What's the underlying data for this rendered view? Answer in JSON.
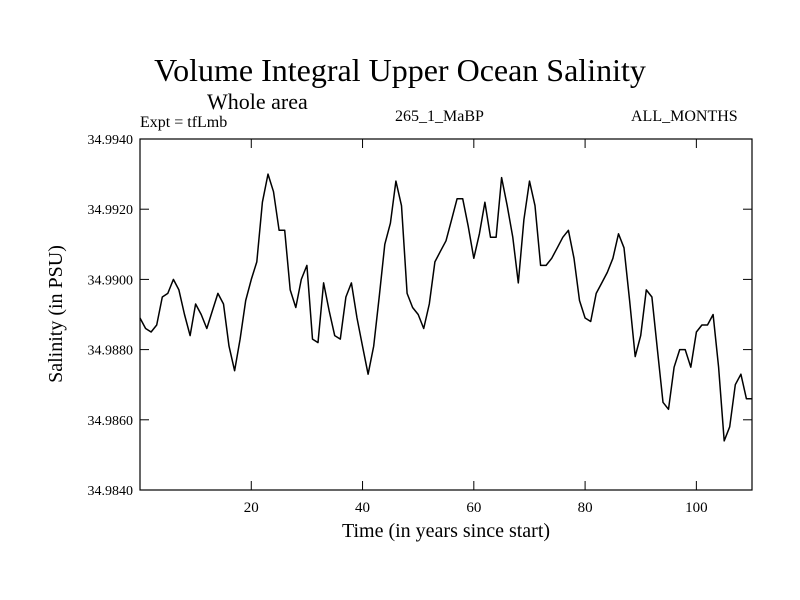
{
  "chart_data": {
    "type": "line",
    "title": "Volume Integral Upper Ocean Salinity",
    "subtitle": "Whole area",
    "annotations": {
      "left": "Expt = tfLmb",
      "center": "265_1_MaBP",
      "right": "ALL_MONTHS"
    },
    "xlabel": "Time (in years since start)",
    "ylabel": "Salinity (in PSU)",
    "xlim": [
      0,
      110
    ],
    "ylim": [
      34.984,
      34.994
    ],
    "xticks": [
      20,
      40,
      60,
      80,
      100
    ],
    "yticks": [
      34.984,
      34.986,
      34.988,
      34.99,
      34.992,
      34.994
    ],
    "ytick_labels": [
      "34.9840",
      "34.9860",
      "34.9880",
      "34.9900",
      "34.9920",
      "34.9940"
    ],
    "series": [
      {
        "name": "Salinity",
        "x": [
          0,
          1,
          2,
          3,
          4,
          5,
          6,
          7,
          8,
          9,
          10,
          11,
          12,
          13,
          14,
          15,
          16,
          17,
          18,
          19,
          20,
          21,
          22,
          23,
          24,
          25,
          26,
          27,
          28,
          29,
          30,
          31,
          32,
          33,
          34,
          35,
          36,
          37,
          38,
          39,
          40,
          41,
          42,
          43,
          44,
          45,
          46,
          47,
          48,
          49,
          50,
          51,
          52,
          53,
          54,
          55,
          56,
          57,
          58,
          59,
          60,
          61,
          62,
          63,
          64,
          65,
          66,
          67,
          68,
          69,
          70,
          71,
          72,
          73,
          74,
          75,
          76,
          77,
          78,
          79,
          80,
          81,
          82,
          83,
          84,
          85,
          86,
          87,
          88,
          89,
          90,
          91,
          92,
          93,
          94,
          95,
          96,
          97,
          98,
          99,
          100,
          101,
          102,
          103,
          104,
          105,
          106,
          107,
          108,
          109,
          110
        ],
        "y": [
          34.9889,
          34.9886,
          34.9885,
          34.9887,
          34.9895,
          34.9896,
          34.99,
          34.9897,
          34.989,
          34.9884,
          34.9893,
          34.989,
          34.9886,
          34.9891,
          34.9896,
          34.9893,
          34.9881,
          34.9874,
          34.9883,
          34.9894,
          34.99,
          34.9905,
          34.9922,
          34.993,
          34.9925,
          34.9914,
          34.9914,
          34.9897,
          34.9892,
          34.99,
          34.9904,
          34.9883,
          34.9882,
          34.9899,
          34.9891,
          34.9884,
          34.9883,
          34.9895,
          34.9899,
          34.9889,
          34.9881,
          34.9873,
          34.9881,
          34.9895,
          34.991,
          34.9916,
          34.9928,
          34.9921,
          34.9896,
          34.9892,
          34.989,
          34.9886,
          34.9893,
          34.9905,
          34.9908,
          34.9911,
          34.9917,
          34.9923,
          34.9923,
          34.9915,
          34.9906,
          34.9913,
          34.9922,
          34.9912,
          34.9912,
          34.9929,
          34.9921,
          34.9912,
          34.9899,
          34.9917,
          34.9928,
          34.9921,
          34.9904,
          34.9904,
          34.9906,
          34.9909,
          34.9912,
          34.9914,
          34.9906,
          34.9894,
          34.9889,
          34.9888,
          34.9896,
          34.9899,
          34.9902,
          34.9906,
          34.9913,
          34.9909,
          34.9894,
          34.9878,
          34.9884,
          34.9897,
          34.9895,
          34.988,
          34.9865,
          34.9863,
          34.9875,
          34.988,
          34.988,
          34.9875,
          34.9885,
          34.9887,
          34.9887,
          34.989,
          34.9875,
          34.9854,
          34.9858,
          34.987,
          34.9873,
          34.9866,
          34.9866
        ]
      }
    ]
  }
}
